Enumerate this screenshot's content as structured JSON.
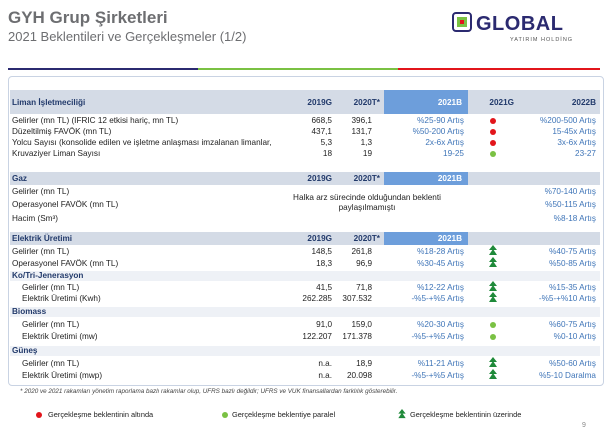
{
  "header": {
    "title": "GYH Grup Şirketleri",
    "subtitle": "2021 Beklentileri ve Gerçekleşmeler (1/2)"
  },
  "logo": {
    "word": "GLOBAL",
    "sub": "YATIRIM HOLDİNG"
  },
  "colors": {
    "header_band": "#d4dbe6",
    "accent_2021b": "#6d9edb",
    "dark_blue": "#223a6b",
    "pct_blue": "#3f75b8",
    "red": "#e2151b",
    "green": "#7ac143",
    "dark_green": "#1f8a3a"
  },
  "liman": {
    "header": {
      "label": "Liman İşletmeciliği",
      "y2019": "2019G",
      "y2020": "2020T*",
      "y2021b": "2021B",
      "y2021g": "2021G",
      "y2022b": "2022B"
    },
    "rows": [
      {
        "label": "Gelirler (mn TL) (IFRIC 12 etkisi hariç, mn TL)",
        "v2019": "668,5",
        "v2020": "396,1",
        "b2021": "%25-90 Artış",
        "status": "below",
        "b2022": "%200-500 Artış"
      },
      {
        "label": "Düzeltilmiş FAVÖK (mn TL)",
        "v2019": "437,1",
        "v2020": "131,7",
        "b2021": "%50-200 Artış",
        "status": "below",
        "b2022": "15-45x Artış"
      },
      {
        "label": "Yolcu Sayısı (konsolide edilen ve işletme anlaşması imzalanan limanlar,",
        "v2019": "5,3",
        "v2020": "1,3",
        "b2021": "2x-6x Artış",
        "status": "below",
        "b2022": "3x-6x Artış"
      },
      {
        "label": "Kruvaziyer Liman Sayısı",
        "v2019": "18",
        "v2020": "19",
        "b2021": "19-25",
        "status": "parallel",
        "b2022": "23-27"
      }
    ]
  },
  "gaz": {
    "header": {
      "label": "Gaz",
      "y2019": "2019G",
      "y2020": "2020T*",
      "y2021b": "2021B"
    },
    "rows": [
      {
        "label": "Gelirler (mn TL)",
        "b2022": "%70-140 Artış"
      },
      {
        "label": "Operasyonel FAVÖK (mn TL)",
        "b2022": "%50-115 Artış"
      },
      {
        "label": "Hacim (Sm³)",
        "b2022": "%8-18 Artış"
      }
    ],
    "note": "Halka arz sürecinde olduğundan beklenti paylaşılmamıştı"
  },
  "elektrik": {
    "header": {
      "label": "Elektrik Üretimi",
      "y2019": "2019G",
      "y2020": "2020T*",
      "y2021b": "2021B"
    },
    "rows": [
      {
        "label": "Gelirler (mn TL)",
        "v2019": "148,5",
        "v2020": "261,8",
        "b2021": "%18-28 Artış",
        "status": "above",
        "b2022": "%40-75 Artış"
      },
      {
        "label": "Operasyonel FAVÖK (mn TL)",
        "v2019": "18,3",
        "v2020": "96,9",
        "b2021": "%30-45 Artış",
        "status": "above",
        "b2022": "%50-85 Artış"
      }
    ],
    "kotri": {
      "title": "Ko/Tri-Jenerasyon",
      "rows": [
        {
          "label": "Gelirler (mn TL)",
          "v2019": "41,5",
          "v2020": "71,8",
          "b2021": "%12-22 Artış",
          "status": "above",
          "b2022": "%15-35 Artış"
        },
        {
          "label": "Elektrik Üretimi (Kwh)",
          "v2019": "262.285",
          "v2020": "307.532",
          "b2021": "-%5-+%5 Artış",
          "status": "above",
          "b2022": "-%5-+%10 Artış"
        }
      ]
    },
    "biomass": {
      "title": "Biomass",
      "rows": [
        {
          "label": "Gelirler (mn TL)",
          "v2019": "91,0",
          "v2020": "159,0",
          "b2021": "%20-30 Artış",
          "status": "parallel",
          "b2022": "%60-75 Artış"
        },
        {
          "label": "Elektrik Üretimi (mw)",
          "v2019": "122.207",
          "v2020": "171.378",
          "b2021": "-%5-+%5 Artış",
          "status": "parallel",
          "b2022": "%0-10 Artış"
        }
      ]
    },
    "gunes": {
      "title": "Güneş",
      "rows": [
        {
          "label": "Gelirler (mn TL)",
          "v2019": "n.a.",
          "v2020": "18,9",
          "b2021": "%11-21 Artış",
          "status": "above",
          "b2022": "%50-60 Artış"
        },
        {
          "label": "Elektrik Üretimi (mwp)",
          "v2019": "n.a.",
          "v2020": "20.098",
          "b2021": "-%5-+%5 Artış",
          "status": "above",
          "b2022": "%5-10 Daralma"
        }
      ]
    }
  },
  "footnote": "* 2020 ve 2021 rakamları yönetim raporlama bazlı rakamlar olup, UFRS bazlı değildir; UFRS ve VUK finansallardan farklılık gösterebilir.",
  "legend": {
    "below": "Gerçekleşme beklentinin altında",
    "parallel": "Gerçekleşme beklentiye paralel",
    "above": "Gerçekleşme beklentinin üzerinde"
  },
  "page_number": "9"
}
